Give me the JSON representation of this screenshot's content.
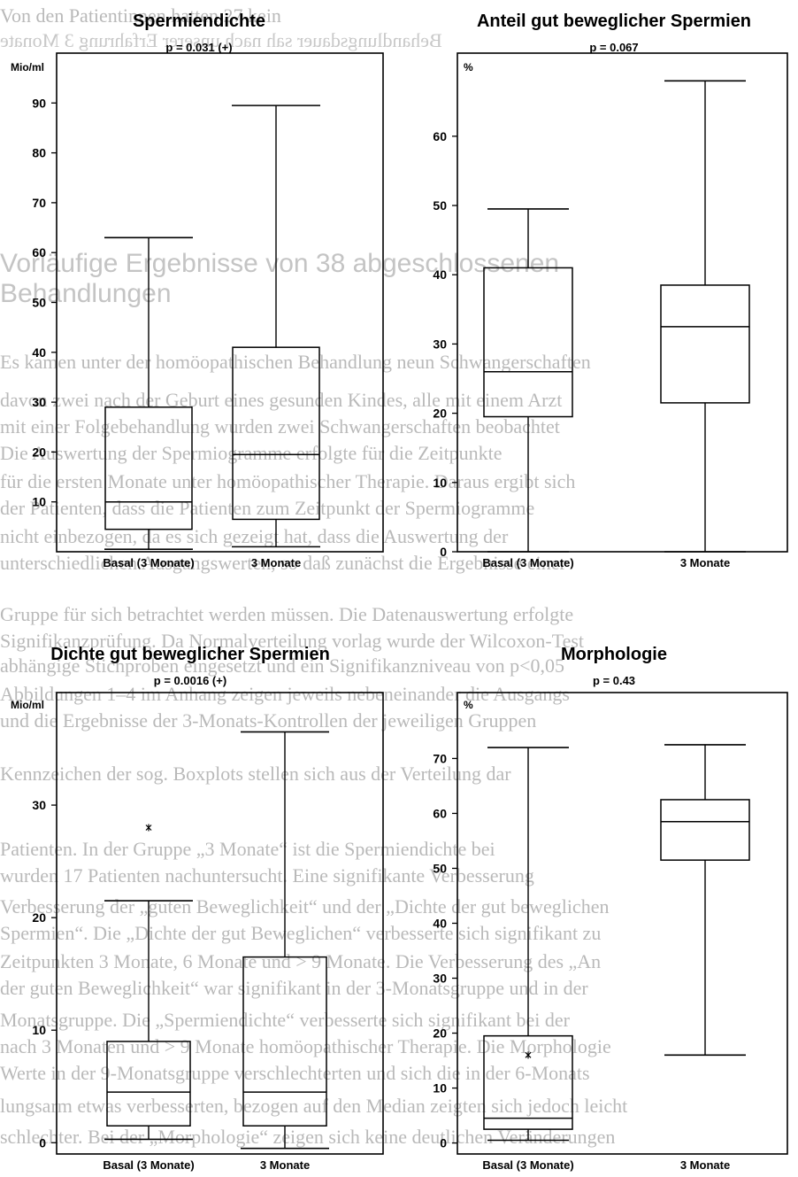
{
  "background_text": [
    {
      "text": "Von den Patientinnen hatten 27 kein",
      "mirror": false
    },
    {
      "text": "Behandlungsdauer sah nach unserer Erfahrung 3 Monate",
      "mirror": true
    },
    {
      "text": "Vorläufige Ergebnisse von 38 abgeschlossenen",
      "mirror": false,
      "heading": true
    },
    {
      "text": "Behandlungen",
      "mirror": false,
      "heading": true
    },
    {
      "text": "Es kamen unter der homöopathischen Behandlung neun Schwangerschaften",
      "mirror": false
    },
    {
      "text": "davon zwei nach der Geburt eines gesunden Kindes, alle mit einem Arzt",
      "mirror": false
    },
    {
      "text": "mit einer Folgebehandlung wurden zwei Schwangerschaften beobachtet",
      "mirror": false
    },
    {
      "text": "Die Auswertung der Spermiogramme erfolgte für die Zeitpunkte",
      "mirror": false
    },
    {
      "text": "für die ersten Monate unter homöopathischer Therapie. Daraus ergibt sich",
      "mirror": false
    },
    {
      "text": "der Patienten, dass die Patienten zum Zeitpunkt der Spermiogramme",
      "mirror": false
    },
    {
      "text": "nicht einbezogen, da es sich gezeigt hat, dass die Auswertung der",
      "mirror": false
    },
    {
      "text": "unterschiedlichen Ausgangswerten, so daß zunächst die Ergebnisse einer",
      "mirror": false
    },
    {
      "text": "Gruppe für sich betrachtet werden müssen. Die Datenauswertung erfolgte",
      "mirror": false
    },
    {
      "text": "Signifikanzprüfung. Da Normalverteilung vorlag wurde der Wilcoxon-Test",
      "mirror": false
    },
    {
      "text": "abhängige Stichproben eingesetzt und ein Signifikanzniveau von p<0,05",
      "mirror": false
    },
    {
      "text": "Abbildungen 1–4 im Anhang zeigen jeweils nebeneinander die Ausgangs",
      "mirror": false
    },
    {
      "text": "und die Ergebnisse der 3-Monats-Kontrollen der jeweiligen Gruppen",
      "mirror": false
    },
    {
      "text": "Kennzeichen der sog. Boxplots stellen sich aus der Verteilung dar",
      "mirror": false
    },
    {
      "text": "Patienten. In der Gruppe „3 Monate“ ist die Spermiendichte bei",
      "mirror": false
    },
    {
      "text": "wurden 17 Patienten nachuntersucht. Eine signifikante Verbesserung",
      "mirror": false
    },
    {
      "text": "Verbesserung der „guten Beweglichkeit“ und der „Dichte der gut beweglichen",
      "mirror": false
    },
    {
      "text": "Spermien“. Die „Dichte der gut Beweglichen“ verbesserte sich signifikant zu",
      "mirror": false
    },
    {
      "text": "Zeitpunkten 3 Monate, 6 Monate und > 9 Monate. Die Verbesserung des „An",
      "mirror": false
    },
    {
      "text": "der guten Beweglichkeit“ war signifikant in der 3-Monatsgruppe und in der",
      "mirror": false
    },
    {
      "text": "Monatsgruppe. Die „Spermiendichte“ verbesserte sich signifikant bei der",
      "mirror": false
    },
    {
      "text": "nach 3 Monaten und > 9 Monate homöopathischer Therapie. Die Morphologie",
      "mirror": false
    },
    {
      "text": "Werte in der 9-Monatsgruppe verschlechterten und sich die in der 6-Monats",
      "mirror": false
    },
    {
      "text": "lungsarm etwas verbesserten, bezogen auf den Median zeigten sich jedoch leicht",
      "mirror": false
    },
    {
      "text": "schlechter. Bei der „Morphologie“ zeigen sich keine deutlichen Veränderungen",
      "mirror": false
    }
  ],
  "chart_data": [
    {
      "type": "boxplot",
      "title": "Spermiendichte",
      "subtitle": "p = 0.031 (+)",
      "ylabel": "Mio/ml",
      "ylim": [
        0,
        100
      ],
      "yticks": [
        10,
        20,
        30,
        40,
        50,
        60,
        70,
        80,
        90
      ],
      "categories": [
        "Basal (3 Monate)",
        "3 Monate"
      ],
      "boxes": [
        {
          "min": 0.5,
          "q1": 4.5,
          "median": 10,
          "q3": 29,
          "max": 63,
          "outliers": []
        },
        {
          "min": 1,
          "q1": 6.5,
          "median": 19.5,
          "q3": 41,
          "max": 89.5,
          "outliers": []
        }
      ]
    },
    {
      "type": "boxplot",
      "title": "Anteil gut beweglicher Spermien",
      "subtitle": "p = 0.067",
      "ylabel": "%",
      "ylim": [
        0,
        72
      ],
      "yticks": [
        0,
        10,
        20,
        30,
        40,
        50,
        60
      ],
      "categories": [
        "Basal (3 Monate)",
        "3 Monate"
      ],
      "boxes": [
        {
          "min": 0,
          "q1": 19.5,
          "median": 26,
          "q3": 41,
          "max": 49.5,
          "outliers": []
        },
        {
          "min": 0,
          "q1": 21.5,
          "median": 32.5,
          "q3": 38.5,
          "max": 68,
          "outliers": []
        }
      ]
    },
    {
      "type": "boxplot",
      "title": "Dichte gut beweglicher Spermien",
      "subtitle": "p = 0.0016 (+)",
      "ylabel": "Mio/ml",
      "ylim": [
        -1,
        40
      ],
      "yticks": [
        0,
        10,
        20,
        30
      ],
      "categories": [
        "Basal (3 Monate)",
        "3 Monate"
      ],
      "boxes": [
        {
          "min": 0.3,
          "q1": 1.5,
          "median": 4.5,
          "q3": 9,
          "max": 21.5,
          "outliers": [
            28
          ]
        },
        {
          "min": -0.5,
          "q1": 1.5,
          "median": 4.5,
          "q3": 16.5,
          "max": 36.5,
          "outliers": []
        }
      ]
    },
    {
      "type": "boxplot",
      "title": "Morphologie",
      "subtitle": "p = 0.43",
      "ylabel": "%",
      "ylim": [
        -2,
        82
      ],
      "yticks": [
        0,
        10,
        20,
        30,
        40,
        50,
        60,
        70
      ],
      "categories": [
        "Basal (3 Monate)",
        "3 Monate"
      ],
      "boxes": [
        {
          "min": 0.5,
          "q1": 2.5,
          "median": 4.5,
          "q3": 19.5,
          "max": 72,
          "outliers": [
            16
          ]
        },
        {
          "min": 16,
          "q1": 51.5,
          "median": 58.5,
          "q3": 62.5,
          "max": 72.5,
          "outliers": []
        }
      ]
    }
  ]
}
